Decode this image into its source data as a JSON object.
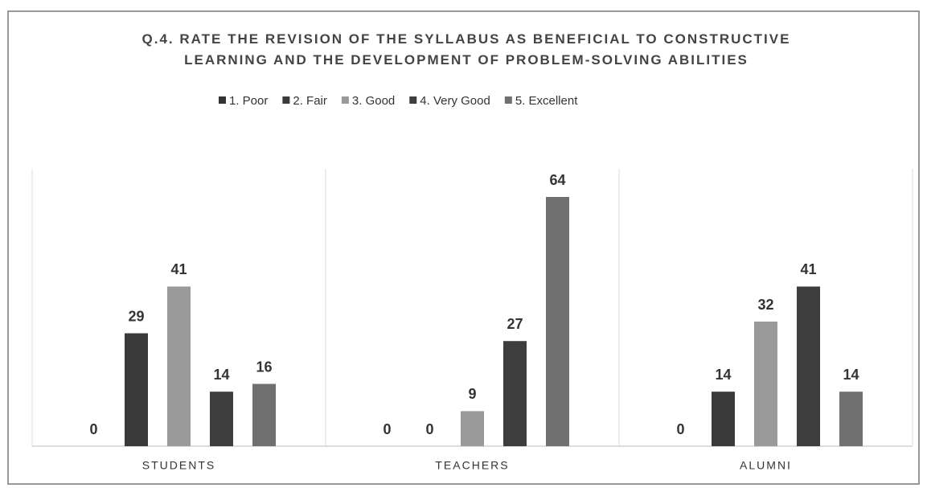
{
  "chart_data": {
    "type": "bar",
    "title": "Q.4. RATE THE REVISION OF THE SYLLABUS AS BENEFICIAL TO CONSTRUCTIVE LEARNING AND THE DEVELOPMENT OF PROBLEM-SOLVING ABILITIES",
    "categories": [
      "STUDENTS",
      "TEACHERS",
      "ALUMNI"
    ],
    "series": [
      {
        "name": "1. Poor",
        "color": "#333333",
        "values": [
          0,
          0,
          0
        ]
      },
      {
        "name": "2. Fair",
        "color": "#3a3a3a",
        "values": [
          29,
          0,
          14
        ]
      },
      {
        "name": "3. Good",
        "color": "#9a9a9a",
        "values": [
          41,
          9,
          32
        ]
      },
      {
        "name": "4. Very Good",
        "color": "#3d3d3d",
        "values": [
          14,
          27,
          41
        ]
      },
      {
        "name": "5. Excellent",
        "color": "#707070",
        "values": [
          16,
          64,
          14
        ]
      }
    ],
    "legend": "top"
  }
}
